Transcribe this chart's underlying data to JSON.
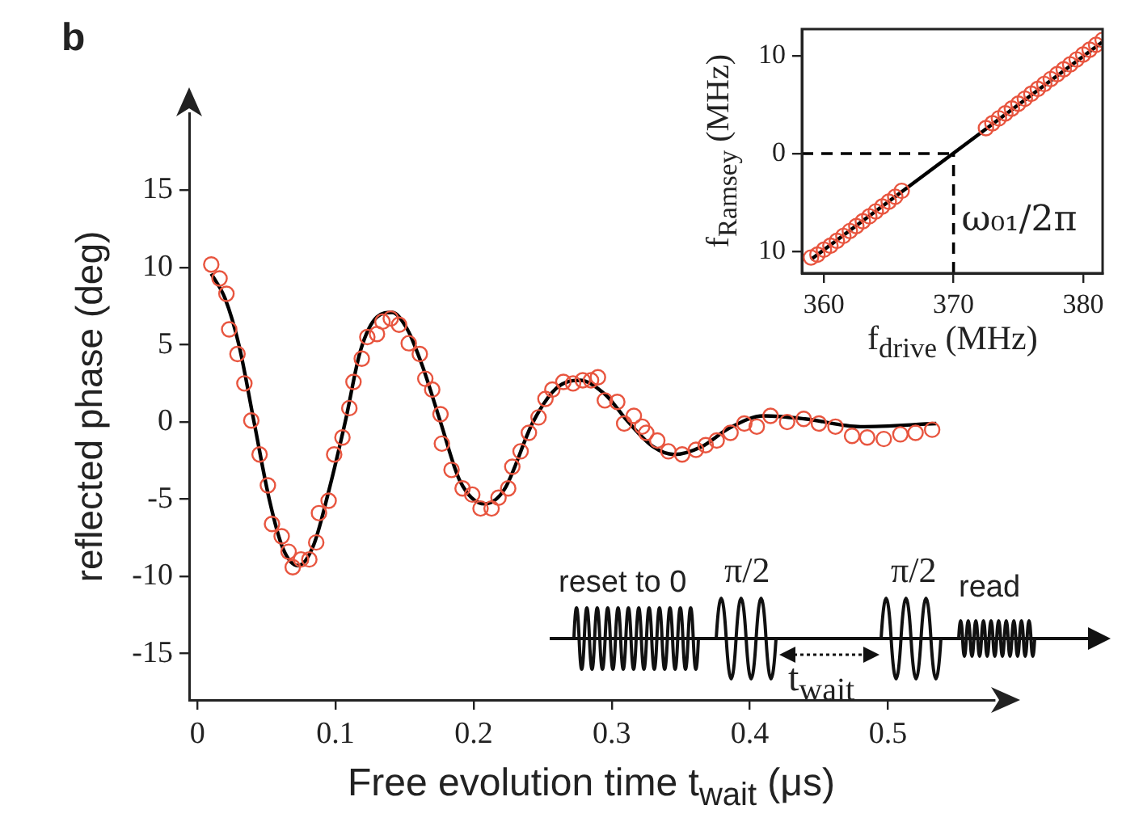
{
  "chart_data": [
    {
      "type": "scatter",
      "title": "b",
      "xlabel": "Free evolution time t$_{wait}$ (μs)",
      "ylabel": "reflected phase (deg)",
      "xlim": [
        -0.006,
        0.577
      ],
      "xticks": [
        0,
        0.1,
        0.2,
        0.3,
        0.4,
        0.5
      ],
      "ylim": [
        -18,
        20
      ],
      "yticks": [
        -15,
        -10,
        -5,
        0,
        5,
        10,
        15
      ],
      "grid": false,
      "legend": false,
      "marker": "circle",
      "annotations": [
        "reset to 0",
        "π/2",
        "π/2",
        "t$_{wait}$",
        "read"
      ],
      "series": [
        {
          "type": "scatter",
          "color": "#e8553f",
          "x": [
            0.01,
            0.016,
            0.021,
            0.023,
            0.029,
            0.034,
            0.039,
            0.045,
            0.051,
            0.054,
            0.061,
            0.066,
            0.069,
            0.075,
            0.081,
            0.086,
            0.088,
            0.095,
            0.099,
            0.105,
            0.11,
            0.113,
            0.119,
            0.123,
            0.13,
            0.134,
            0.14,
            0.146,
            0.153,
            0.161,
            0.165,
            0.17,
            0.176,
            0.177,
            0.184,
            0.192,
            0.199,
            0.205,
            0.213,
            0.218,
            0.225,
            0.228,
            0.234,
            0.24,
            0.247,
            0.252,
            0.257,
            0.265,
            0.272,
            0.279,
            0.285,
            0.29,
            0.295,
            0.304,
            0.309,
            0.316,
            0.322,
            0.325,
            0.333,
            0.341,
            0.351,
            0.361,
            0.368,
            0.376,
            0.386,
            0.396,
            0.405,
            0.415,
            0.427,
            0.439,
            0.45,
            0.462,
            0.474,
            0.485,
            0.497,
            0.509,
            0.52,
            0.532
          ],
          "values": [
            10.2,
            9.3,
            8.3,
            6.0,
            4.4,
            2.5,
            0.1,
            -2.1,
            -4.1,
            -6.6,
            -7.4,
            -8.4,
            -9.4,
            -8.9,
            -8.9,
            -7.8,
            -5.9,
            -5.1,
            -2.1,
            -1.0,
            0.9,
            2.6,
            4.1,
            5.5,
            5.7,
            6.5,
            6.7,
            6.3,
            5.1,
            4.4,
            2.8,
            2.1,
            0.5,
            -1.4,
            -3.1,
            -4.3,
            -4.7,
            -5.6,
            -5.6,
            -4.9,
            -4.3,
            -2.9,
            -1.9,
            -0.7,
            0.3,
            1.5,
            2.1,
            2.6,
            2.5,
            2.7,
            2.7,
            2.9,
            1.4,
            1.3,
            -0.1,
            0.4,
            -0.3,
            -0.7,
            -1.2,
            -1.9,
            -2.1,
            -1.8,
            -1.5,
            -1.2,
            -0.7,
            -0.1,
            -0.3,
            0.4,
            0.0,
            0.2,
            -0.1,
            -0.3,
            -0.9,
            -1.0,
            -1.1,
            -0.8,
            -0.7,
            -0.5
          ]
        },
        {
          "type": "line",
          "color": "#000000",
          "marker": "none",
          "x": [
            0.01,
            0.02,
            0.03,
            0.041,
            0.052,
            0.062,
            0.073,
            0.084,
            0.095,
            0.107,
            0.118,
            0.13,
            0.141,
            0.152,
            0.163,
            0.176,
            0.19,
            0.208,
            0.222,
            0.243,
            0.26,
            0.277,
            0.295,
            0.312,
            0.33,
            0.345,
            0.365,
            0.385,
            0.41,
            0.44,
            0.48,
            0.535
          ],
          "values": [
            9.6,
            8.0,
            5.0,
            0,
            -5.0,
            -8.2,
            -9.3,
            -8.0,
            -4.5,
            0,
            4.6,
            6.8,
            7.1,
            6.0,
            3.6,
            0,
            -3.8,
            -5.3,
            -4.4,
            0,
            2.2,
            2.7,
            1.8,
            0,
            -1.6,
            -2.1,
            -1.6,
            -0.4,
            0.4,
            0.2,
            -0.3,
            -0.1
          ]
        }
      ]
    },
    {
      "type": "scatter",
      "xlabel": "f$_{drive}$ (MHz)",
      "ylabel": "f$_{Ramsey}$ (MHz)",
      "xlim": [
        358.3,
        381.5
      ],
      "xticks": [
        360,
        370,
        380
      ],
      "ylim": [
        -12.2,
        12.7
      ],
      "yticks": [
        {
          "value": -10,
          "label": "10"
        },
        0,
        10
      ],
      "grid": false,
      "legend": false,
      "marker": "circle",
      "ref_lines": [
        {
          "axis": "y",
          "value": 0,
          "line_style": "dashed",
          "color": "#000000"
        },
        {
          "axis": "x",
          "value": 370,
          "label": "ω₀₁/2π",
          "line_style": "dashed",
          "color": "#000000"
        }
      ],
      "series": [
        {
          "type": "scatter",
          "color": "#e8553f",
          "x": [
            359,
            359.5,
            360,
            360.5,
            361,
            361.5,
            362,
            362.5,
            363,
            363.5,
            364,
            364.5,
            365,
            365.5,
            366,
            372.5,
            373,
            373.5,
            374,
            374.5,
            375,
            375.5,
            376,
            376.5,
            377,
            377.5,
            378,
            378.5,
            379,
            379.5,
            380,
            380.5,
            381,
            381.5
          ],
          "values": [
            -10.6,
            -10.3,
            -9.8,
            -9.4,
            -8.9,
            -8.4,
            -7.9,
            -7.4,
            -6.9,
            -6.4,
            -5.9,
            -5.4,
            -4.9,
            -4.4,
            -3.8,
            2.6,
            3.1,
            3.6,
            4.1,
            4.6,
            5.1,
            5.6,
            6.1,
            6.6,
            7.1,
            7.6,
            8.1,
            8.6,
            9.1,
            9.6,
            10.1,
            10.6,
            11.1,
            11.6
          ]
        },
        {
          "type": "line",
          "color": "#000000",
          "marker": "none",
          "x": [
            359,
            381.5
          ],
          "values": [
            -10.8,
            11.4
          ]
        }
      ]
    }
  ]
}
